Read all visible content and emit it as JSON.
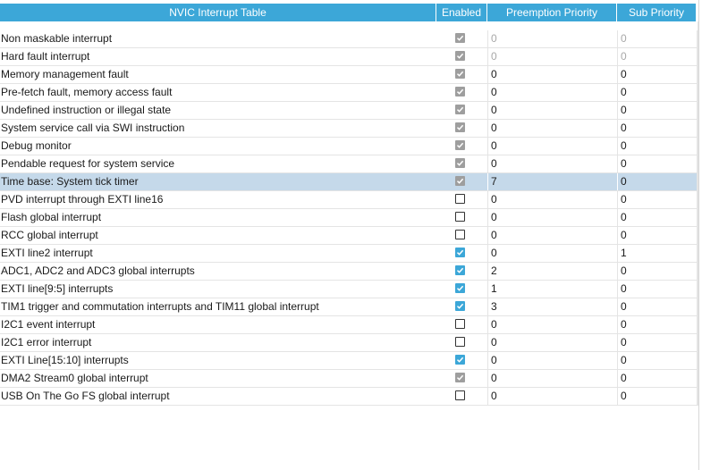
{
  "table": {
    "columns": {
      "name": "NVIC Interrupt Table",
      "enabled": "Enabled",
      "preemption": "Preemption Priority",
      "sub": "Sub Priority"
    },
    "rows": [
      {
        "name": "Non maskable interrupt",
        "enabled": "checked-locked",
        "preemption": "0",
        "sub": "0",
        "dim": true
      },
      {
        "name": "Hard fault interrupt",
        "enabled": "checked-locked",
        "preemption": "0",
        "sub": "0",
        "dim": true
      },
      {
        "name": "Memory management fault",
        "enabled": "checked-locked",
        "preemption": "0",
        "sub": "0",
        "dim": false
      },
      {
        "name": "Pre-fetch fault, memory access fault",
        "enabled": "checked-locked",
        "preemption": "0",
        "sub": "0",
        "dim": false
      },
      {
        "name": "Undefined instruction or illegal state",
        "enabled": "checked-locked",
        "preemption": "0",
        "sub": "0",
        "dim": false
      },
      {
        "name": "System service call via SWI instruction",
        "enabled": "checked-locked",
        "preemption": "0",
        "sub": "0",
        "dim": false
      },
      {
        "name": "Debug monitor",
        "enabled": "checked-locked",
        "preemption": "0",
        "sub": "0",
        "dim": false
      },
      {
        "name": "Pendable request for system service",
        "enabled": "checked-locked",
        "preemption": "0",
        "sub": "0",
        "dim": false
      },
      {
        "name": "Time base: System tick timer",
        "enabled": "checked-locked",
        "preemption": "7",
        "sub": "0",
        "dim": false,
        "selected": true
      },
      {
        "name": "PVD interrupt through EXTI line16",
        "enabled": "unchecked",
        "preemption": "0",
        "sub": "0",
        "dim": false
      },
      {
        "name": "Flash global interrupt",
        "enabled": "unchecked",
        "preemption": "0",
        "sub": "0",
        "dim": false
      },
      {
        "name": "RCC global interrupt",
        "enabled": "unchecked",
        "preemption": "0",
        "sub": "0",
        "dim": false
      },
      {
        "name": "EXTI line2 interrupt",
        "enabled": "checked",
        "preemption": "0",
        "sub": "1",
        "dim": false
      },
      {
        "name": "ADC1, ADC2 and ADC3 global interrupts",
        "enabled": "checked",
        "preemption": "2",
        "sub": "0",
        "dim": false
      },
      {
        "name": "EXTI line[9:5] interrupts",
        "enabled": "checked",
        "preemption": "1",
        "sub": "0",
        "dim": false
      },
      {
        "name": "TIM1 trigger and commutation interrupts and TIM11 global interrupt",
        "enabled": "checked",
        "preemption": "3",
        "sub": "0",
        "dim": false
      },
      {
        "name": "I2C1 event interrupt",
        "enabled": "unchecked",
        "preemption": "0",
        "sub": "0",
        "dim": false
      },
      {
        "name": "I2C1 error interrupt",
        "enabled": "unchecked",
        "preemption": "0",
        "sub": "0",
        "dim": false
      },
      {
        "name": "EXTI Line[15:10] interrupts",
        "enabled": "checked",
        "preemption": "0",
        "sub": "0",
        "dim": false
      },
      {
        "name": "DMA2 Stream0 global interrupt",
        "enabled": "checked-locked",
        "preemption": "0",
        "sub": "0",
        "dim": false
      },
      {
        "name": "USB On The Go FS global interrupt",
        "enabled": "unchecked",
        "preemption": "0",
        "sub": "0",
        "dim": false
      }
    ]
  },
  "colors": {
    "header_bg": "#3ca7d8",
    "selected_row_bg": "#c5d9ea",
    "checkbox_checked": "#3ca7d8",
    "checkbox_locked": "#9e9e9e"
  }
}
